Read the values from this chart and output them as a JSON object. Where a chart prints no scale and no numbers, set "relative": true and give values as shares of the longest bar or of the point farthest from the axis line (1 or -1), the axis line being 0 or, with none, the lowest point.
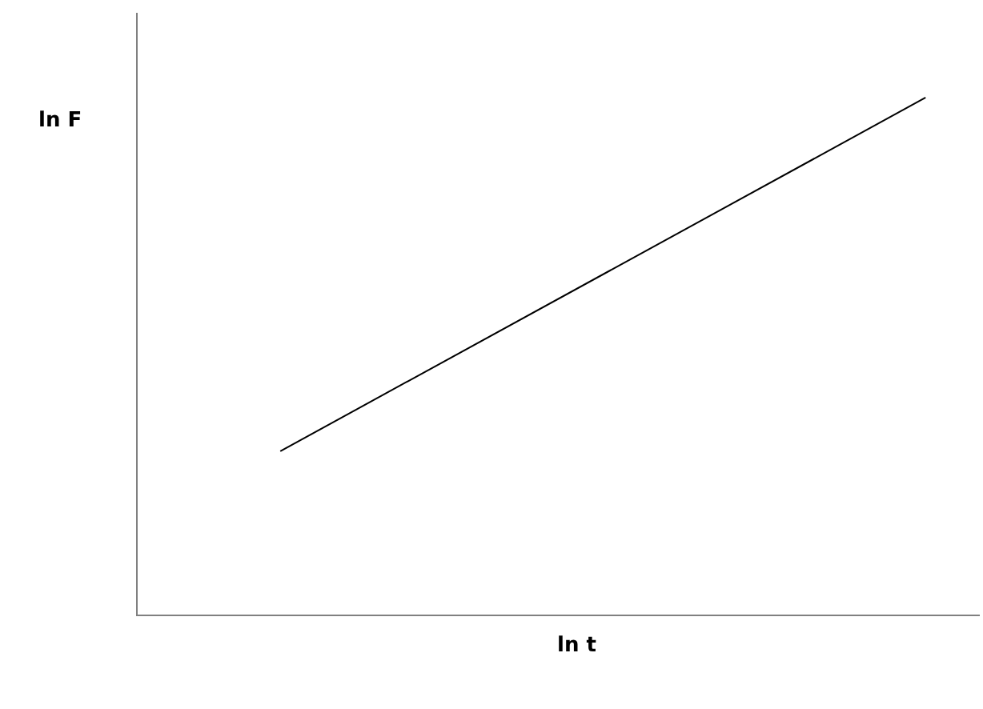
{
  "chart_data": {
    "type": "line",
    "xlabel": "ln t",
    "ylabel": "ln F",
    "relative": true,
    "categories": [
      null,
      null
    ],
    "series": [
      {
        "color": "#000000",
        "values": [
          0.316,
          1
        ]
      }
    ],
    "marker": "none",
    "line_style": "solid"
  }
}
